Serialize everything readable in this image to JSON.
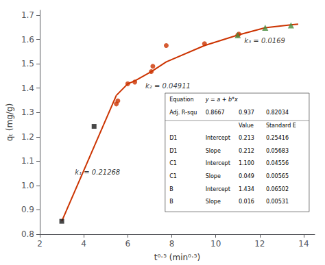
{
  "chart_data": {
    "type": "scatter",
    "xlabel": "t⁰·⁵ (min⁰·⁵)",
    "ylabel": "qₜ (mg/g)",
    "xlim": [
      2,
      14.5
    ],
    "ylim": [
      0.8,
      1.72
    ],
    "xticks": [
      2,
      4,
      6,
      8,
      10,
      12,
      14
    ],
    "yticks": [
      0.8,
      0.9,
      {
        "value": 1.0,
        "label": "1.0"
      },
      1.1,
      1.2,
      1.3,
      1.4,
      1.5,
      1.6,
      1.7
    ],
    "grid": false,
    "series": [
      {
        "type": "line",
        "color": "#cc3300",
        "x": [
          3.0,
          5.48
        ],
        "values": [
          0.853,
          1.37
        ]
      },
      {
        "type": "line",
        "color": "#cc3300",
        "x": [
          5.48,
          6.0,
          6.32,
          7.07,
          7.75,
          9.49,
          11.0
        ],
        "values": [
          1.37,
          1.418,
          1.43,
          1.468,
          1.508,
          1.575,
          1.618
        ]
      },
      {
        "type": "line",
        "color": "#cc3300",
        "x": [
          11.0,
          12.25,
          13.42,
          13.75
        ],
        "values": [
          1.618,
          1.648,
          1.66,
          1.663
        ]
      },
      {
        "type": "scatter",
        "color": "#1a1a1a",
        "marker": "square",
        "x": [
          3.0,
          4.47
        ],
        "values": [
          0.853,
          1.243
        ]
      },
      {
        "type": "scatter",
        "color": "#cc3300",
        "marker": "circle",
        "x": [
          5.48,
          5.55,
          6.0,
          6.32,
          7.07,
          7.14,
          7.75,
          9.49,
          11.0,
          11.05
        ],
        "values": [
          1.335,
          1.348,
          1.418,
          1.425,
          1.468,
          1.49,
          1.575,
          1.583,
          1.618,
          1.622
        ]
      },
      {
        "type": "scatter",
        "color": "#4a8c3f",
        "marker": "triangle",
        "x": [
          11.0,
          12.25,
          13.42
        ],
        "values": [
          1.618,
          1.648,
          1.658
        ]
      }
    ],
    "annotations": [
      {
        "text": "k₁ = 0.21268",
        "x": 3.6,
        "y": 1.04
      },
      {
        "text": "k₂ = 0.04911",
        "x": 6.8,
        "y": 1.395
      },
      {
        "text": "k₃ = 0.0169",
        "x": 11.3,
        "y": 1.582
      }
    ],
    "table": {
      "rows": [
        [
          "Equation",
          "y = a + b*x",
          null,
          null
        ],
        [
          "Adj. R-squ",
          "0.8667",
          "0.937",
          "0.82034"
        ],
        [
          null,
          null,
          "Value",
          "Standard E"
        ],
        [
          "D1",
          "Intercept",
          "0.213",
          "0.25416"
        ],
        [
          "D1",
          "Slope",
          "0.212",
          "0.05683"
        ],
        [
          "C1",
          "Intercept",
          "1.100",
          "0.04556"
        ],
        [
          "C1",
          "Slope",
          "0.049",
          "0.00565"
        ],
        [
          "B",
          "Intercept",
          "1.434",
          "0.06502"
        ],
        [
          "B",
          "Slope",
          "0.016",
          "0.00531"
        ]
      ]
    }
  }
}
